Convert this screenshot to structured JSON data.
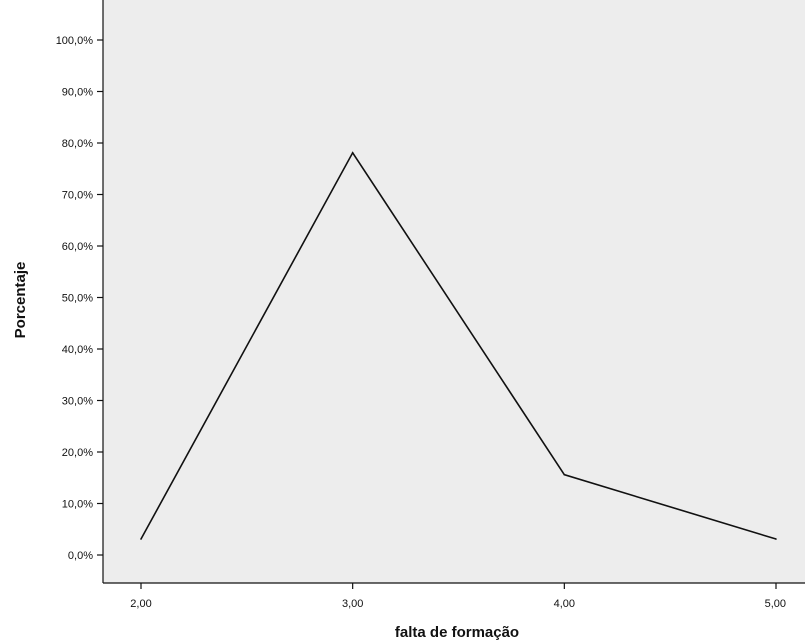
{
  "chart_data": {
    "type": "line",
    "title": "",
    "xlabel": "falta de formação",
    "ylabel": "Porcentaje",
    "x": [
      2,
      3,
      4,
      5
    ],
    "x_tick_labels": [
      "2,00",
      "3,00",
      "4,00",
      "5,00"
    ],
    "series": [
      {
        "values": [
          3.1,
          78.1,
          15.6,
          3.1
        ]
      }
    ],
    "y_tick_labels": [
      "0,0%",
      "10,0%",
      "20,0%",
      "30,0%",
      "40,0%",
      "50,0%",
      "60,0%",
      "70,0%",
      "80,0%",
      "90,0%",
      "100,0%"
    ],
    "ylim": [
      0,
      100
    ],
    "xlim": [
      2,
      5
    ],
    "grid": false,
    "legend": "none",
    "colors": {
      "plot_background": "#ededed",
      "line": "#111111",
      "axis": "#111111"
    }
  }
}
